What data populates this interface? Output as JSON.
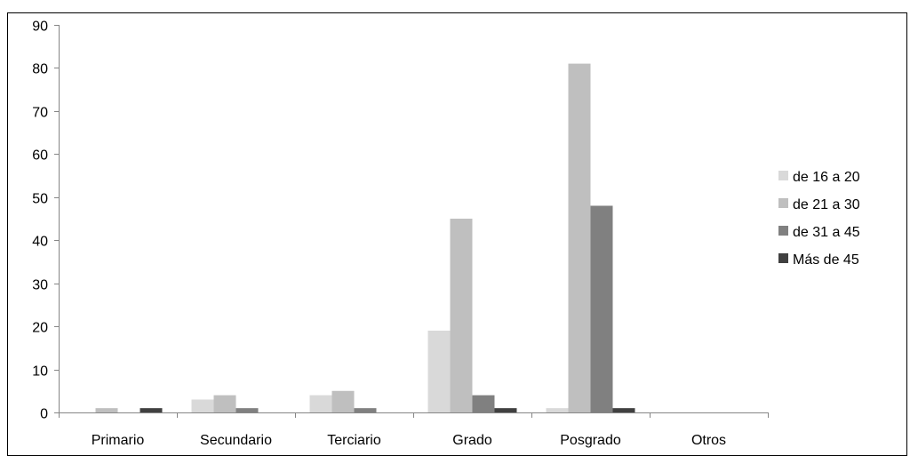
{
  "chart_data": {
    "type": "bar",
    "categories": [
      "Primario",
      "Secundario",
      "Terciario",
      "Grado",
      "Posgrado",
      "Otros"
    ],
    "series": [
      {
        "name": "de 16 a 20",
        "color": "#d9d9d9",
        "values": [
          0,
          3,
          4,
          19,
          1,
          0
        ]
      },
      {
        "name": "de 21 a 30",
        "color": "#bfbfbf",
        "values": [
          1,
          4,
          5,
          45,
          81,
          0
        ]
      },
      {
        "name": "de 31 a 45",
        "color": "#808080",
        "values": [
          0,
          1,
          1,
          4,
          48,
          0
        ]
      },
      {
        "name": "Más de 45",
        "color": "#404040",
        "values": [
          1,
          0,
          0,
          1,
          1,
          0
        ]
      }
    ],
    "ylim": [
      0,
      90
    ],
    "yticks": [
      0,
      10,
      20,
      30,
      40,
      50,
      60,
      70,
      80,
      90
    ],
    "legend_position": "right",
    "grid": false
  }
}
